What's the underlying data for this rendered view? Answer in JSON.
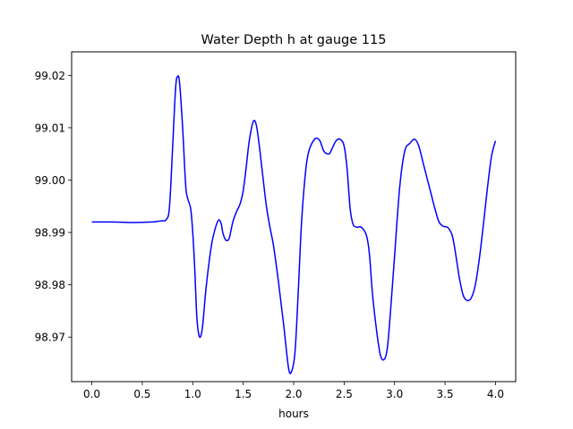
{
  "chart_data": {
    "type": "line",
    "title": "Water Depth h at gauge 115",
    "xlabel": "hours",
    "ylabel": "",
    "xlim": [
      -0.2,
      4.2
    ],
    "ylim": [
      98.9615,
      99.0245
    ],
    "x_ticks": [
      0.0,
      0.5,
      1.0,
      1.5,
      2.0,
      2.5,
      3.0,
      3.5,
      4.0
    ],
    "x_tick_labels": [
      "0.0",
      "0.5",
      "1.0",
      "1.5",
      "2.0",
      "2.5",
      "3.0",
      "3.5",
      "4.0"
    ],
    "y_ticks": [
      98.97,
      98.98,
      98.99,
      99.0,
      99.01,
      99.02
    ],
    "y_tick_labels": [
      "98.97",
      "98.98",
      "98.99",
      "99.00",
      "99.01",
      "99.02"
    ],
    "grid": false,
    "legend": "none",
    "colors": {
      "line": "#0000ff",
      "axes": "#000000",
      "background": "#ffffff"
    },
    "series": [
      {
        "x": [
          0.0,
          0.2,
          0.4,
          0.6,
          0.68,
          0.74,
          0.77,
          0.8,
          0.83,
          0.85,
          0.87,
          0.9,
          0.93,
          0.95,
          0.98,
          1.0,
          1.02,
          1.04,
          1.06,
          1.08,
          1.1,
          1.13,
          1.17,
          1.2,
          1.25,
          1.28,
          1.3,
          1.33,
          1.36,
          1.38,
          1.4,
          1.43,
          1.47,
          1.5,
          1.53,
          1.56,
          1.6,
          1.63,
          1.66,
          1.69,
          1.73,
          1.77,
          1.8,
          1.85,
          1.9,
          1.95,
          1.98,
          2.01,
          2.03,
          2.05,
          2.08,
          2.12,
          2.15,
          2.18,
          2.22,
          2.26,
          2.3,
          2.35,
          2.38,
          2.42,
          2.46,
          2.5,
          2.53,
          2.56,
          2.59,
          2.63,
          2.67,
          2.72,
          2.75,
          2.78,
          2.82,
          2.86,
          2.9,
          2.93,
          2.96,
          3.0,
          3.05,
          3.1,
          3.15,
          3.2,
          3.24,
          3.28,
          3.32,
          3.36,
          3.4,
          3.44,
          3.48,
          3.5,
          3.53,
          3.57,
          3.6,
          3.64,
          3.68,
          3.72,
          3.76,
          3.8,
          3.84,
          3.88,
          3.92,
          3.96,
          4.0
        ],
        "y": [
          98.992,
          98.992,
          98.9919,
          98.992,
          98.9922,
          98.9925,
          98.995,
          99.006,
          99.0175,
          99.0198,
          99.0185,
          99.01,
          98.999,
          98.9965,
          98.9945,
          98.99,
          98.983,
          98.974,
          98.9705,
          98.9702,
          98.9725,
          98.979,
          98.9855,
          98.989,
          98.9922,
          98.9918,
          98.9898,
          98.9885,
          98.9888,
          98.9905,
          98.9922,
          98.9938,
          98.9955,
          98.998,
          99.0025,
          99.0075,
          99.0112,
          99.0105,
          99.0065,
          99.0015,
          98.995,
          98.9905,
          98.9875,
          98.9805,
          98.9725,
          98.964,
          98.9635,
          98.9665,
          98.9725,
          98.9805,
          98.9925,
          99.002,
          99.0055,
          99.007,
          99.008,
          99.0075,
          99.0055,
          99.005,
          99.006,
          99.0075,
          99.0078,
          99.0065,
          99.002,
          98.9945,
          98.9915,
          98.991,
          98.991,
          98.9895,
          98.986,
          98.9785,
          98.9715,
          98.9665,
          98.9658,
          98.9682,
          98.975,
          98.9855,
          98.9985,
          99.0055,
          99.007,
          99.0078,
          99.0065,
          99.0035,
          99.0005,
          98.9975,
          98.9945,
          98.992,
          98.9912,
          98.9911,
          98.9909,
          98.9895,
          98.9865,
          98.9815,
          98.978,
          98.977,
          98.9775,
          98.98,
          98.985,
          98.9915,
          98.9985,
          99.0045,
          99.0075
        ]
      }
    ]
  }
}
